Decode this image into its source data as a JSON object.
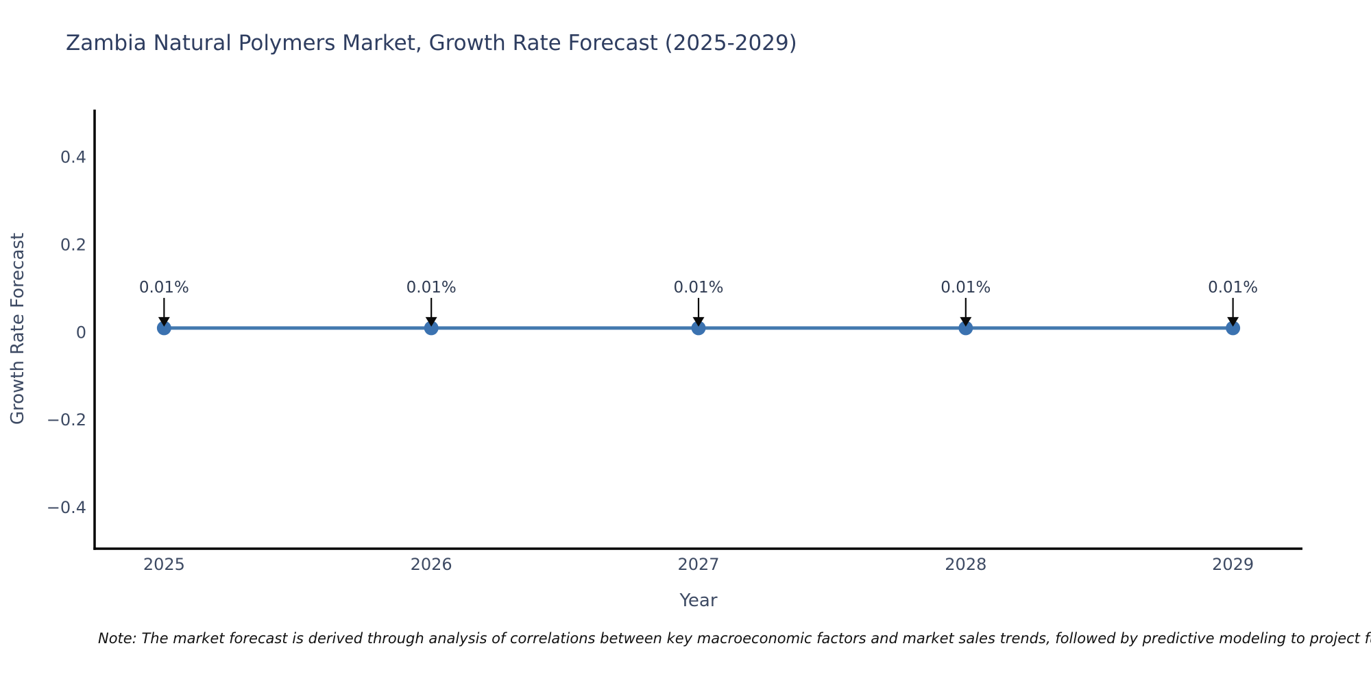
{
  "chart_data": {
    "type": "line",
    "title": "Zambia Natural Polymers Market, Growth Rate Forecast (2025-2029)",
    "xlabel": "Year",
    "ylabel": "Growth Rate Forecast",
    "x": [
      2025,
      2026,
      2027,
      2028,
      2029
    ],
    "xticks": [
      "2025",
      "2026",
      "2027",
      "2028",
      "2029"
    ],
    "series": [
      {
        "name": "Growth Rate Forecast",
        "values": [
          0.01,
          0.01,
          0.01,
          0.01,
          0.01
        ]
      }
    ],
    "point_labels": [
      "0.01%",
      "0.01%",
      "0.01%",
      "0.01%",
      "0.01%"
    ],
    "yticks": [
      0.4,
      0.2,
      0,
      -0.2,
      -0.4
    ],
    "ytick_labels": [
      "0.4",
      "0.2",
      "0",
      "−0.2",
      "−0.4"
    ],
    "xlim": [
      2024.74,
      2029.26
    ],
    "ylim": [
      -0.494,
      0.509
    ],
    "grid": false,
    "legend": "none",
    "colors": {
      "line": "#4379af",
      "marker": "#3b72b0",
      "axis": "#000000",
      "arrow": "#0a0a0a",
      "tick_text": "#3d4a63",
      "annotation_text": "#2f3b52",
      "title_text": "#2e3d60"
    }
  },
  "note": {
    "text": "Note: The market forecast is derived through analysis of correlations between key macroeconomic factors and market sales trends, followed by predictive modeling to project future sa"
  }
}
